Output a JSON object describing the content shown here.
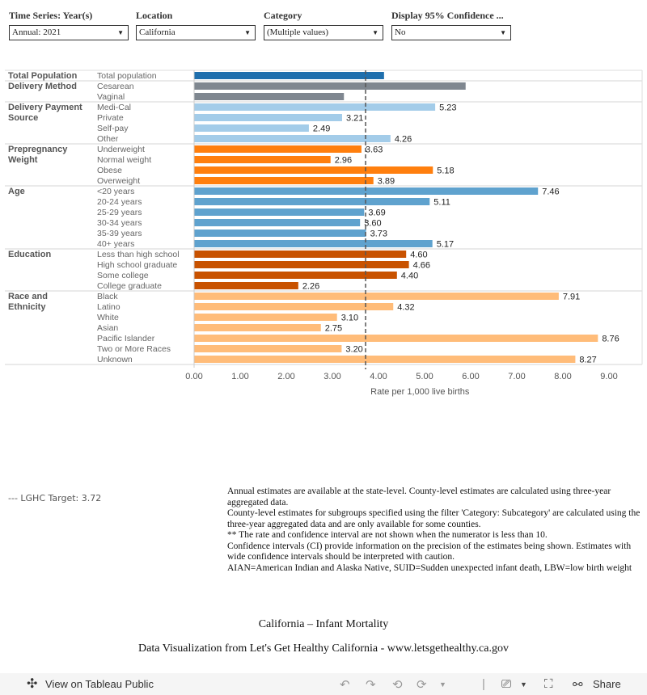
{
  "filters": [
    {
      "label": "Time Series: Year(s)",
      "value": "Annual: 2021"
    },
    {
      "label": "Location",
      "value": "California"
    },
    {
      "label": "Category",
      "value": "(Multiple values)"
    },
    {
      "label": "Display 95% Confidence ...",
      "value": "No"
    }
  ],
  "chart_data": {
    "type": "bar",
    "orientation": "horizontal",
    "xlabel": "Rate per 1,000 live births",
    "xlim": [
      0,
      9.4
    ],
    "xticks": [
      "0.00",
      "1.00",
      "2.00",
      "3.00",
      "4.00",
      "5.00",
      "6.00",
      "7.00",
      "8.00",
      "9.00"
    ],
    "reference_line": {
      "label": "--- LGHC Target: 3.72",
      "value": 3.72
    },
    "groups": [
      {
        "name": "Total Population",
        "color": "#1f6fad",
        "items": [
          {
            "label": "Total population",
            "value": 4.12
          }
        ]
      },
      {
        "name": "Delivery Method",
        "color": "#7f8790",
        "items": [
          {
            "label": "Cesarean",
            "value": 5.89
          },
          {
            "label": "Vaginal",
            "value": 3.25
          }
        ]
      },
      {
        "name": "Delivery Payment Source",
        "color": "#a3cce9",
        "items": [
          {
            "label": "Medi-Cal",
            "value": 5.23,
            "shown": "5.23"
          },
          {
            "label": "Private",
            "value": 3.21,
            "shown": "3.21"
          },
          {
            "label": "Self-pay",
            "value": 2.49,
            "shown": "2.49"
          },
          {
            "label": "Other",
            "value": 4.26,
            "shown": "4.26"
          }
        ]
      },
      {
        "name": "Prepregnancy Weight",
        "color": "#ff7f0e",
        "items": [
          {
            "label": "Underweight",
            "value": 3.63,
            "shown": "3.63"
          },
          {
            "label": "Normal weight",
            "value": 2.96,
            "shown": "2.96"
          },
          {
            "label": "Obese",
            "value": 5.18,
            "shown": "5.18"
          },
          {
            "label": "Overweight",
            "value": 3.89,
            "shown": "3.89"
          }
        ]
      },
      {
        "name": "Age",
        "color": "#5fa2ce",
        "items": [
          {
            "label": "<20 years",
            "value": 7.46,
            "shown": "7.46"
          },
          {
            "label": "20-24 years",
            "value": 5.11,
            "shown": "5.11"
          },
          {
            "label": "25-29 years",
            "value": 3.69,
            "shown": "3.69"
          },
          {
            "label": "30-34 years",
            "value": 3.6,
            "shown": "3.60"
          },
          {
            "label": "35-39 years",
            "value": 3.73,
            "shown": "3.73"
          },
          {
            "label": "40+ years",
            "value": 5.17,
            "shown": "5.17"
          }
        ]
      },
      {
        "name": "Education",
        "color": "#c85200",
        "items": [
          {
            "label": "Less than high school",
            "value": 4.6,
            "shown": "4.60"
          },
          {
            "label": "High school graduate",
            "value": 4.66,
            "shown": "4.66"
          },
          {
            "label": "Some college",
            "value": 4.4,
            "shown": "4.40"
          },
          {
            "label": "College graduate",
            "value": 2.26,
            "shown": "2.26"
          }
        ]
      },
      {
        "name": "Race and Ethnicity",
        "color": "#ffbc79",
        "items": [
          {
            "label": "Black",
            "value": 7.91,
            "shown": "7.91"
          },
          {
            "label": "Latino",
            "value": 4.32,
            "shown": "4.32"
          },
          {
            "label": "White",
            "value": 3.1,
            "shown": "3.10"
          },
          {
            "label": "Asian",
            "value": 2.75,
            "shown": "2.75"
          },
          {
            "label": "Pacific Islander",
            "value": 8.76,
            "shown": "8.76"
          },
          {
            "label": "Two or More Races",
            "value": 3.2,
            "shown": "3.20"
          },
          {
            "label": "Unknown",
            "value": 8.27,
            "shown": "8.27"
          }
        ]
      }
    ]
  },
  "notes": [
    "Annual estimates are available at the state-level. County-level estimates are calculated using three-year aggregated data.",
    "County-level estimates for subgroups specified using the filter 'Category: Subcategory' are calculated using the three-year aggregated data and are only available for some counties.",
    "** The rate and confidence interval are not shown when the numerator is less than 10.",
    "Confidence intervals (CI) provide information on the precision of the estimates being shown. Estimates with wide confidence intervals should be interpreted with caution.",
    "AIAN=American Indian and Alaska Native, SUID=Sudden unexpected infant death, LBW=low birth weight"
  ],
  "title": "California – Infant Mortality",
  "credit": "Data Visualization from Let's Get Healthy California - www.letsgethealthy.ca.gov",
  "toolbar": {
    "view_label": "View on Tableau Public",
    "share_label": "Share"
  }
}
